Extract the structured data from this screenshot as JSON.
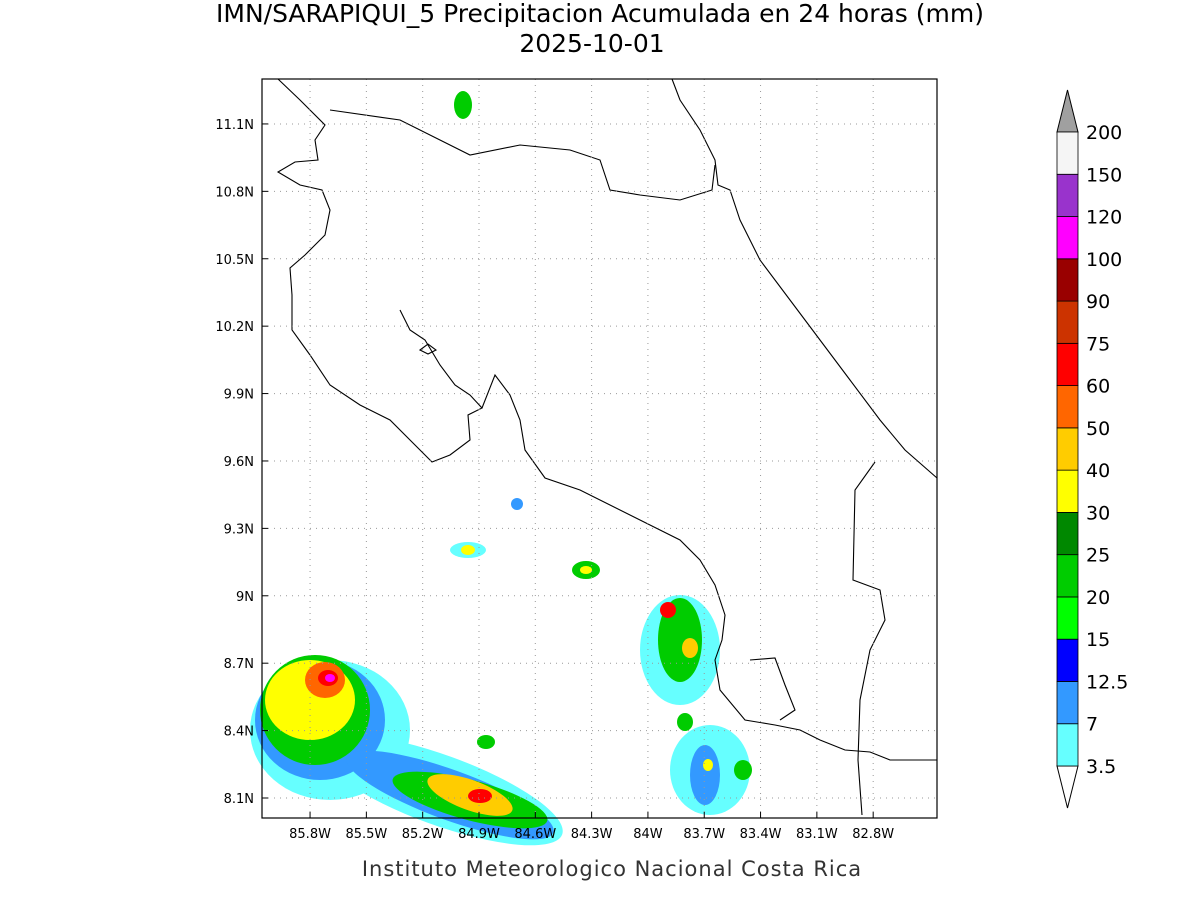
{
  "title": "IMN/SARAPIQUI_5 Precipitacion Acumulada en 24 horas (mm)",
  "subtitle": "2025-10-01",
  "map": {
    "xlim": [
      -86.056,
      -82.46
    ],
    "ylim": [
      8.011,
      11.3
    ],
    "xticks": [
      {
        "value": -85.8,
        "label": "85.8W"
      },
      {
        "value": -85.5,
        "label": "85.5W"
      },
      {
        "value": -85.2,
        "label": "85.2W"
      },
      {
        "value": -84.9,
        "label": "84.9W"
      },
      {
        "value": -84.6,
        "label": "84.6W"
      },
      {
        "value": -84.3,
        "label": "84.3W"
      },
      {
        "value": -84.0,
        "label": "84W"
      },
      {
        "value": -83.7,
        "label": "83.7W"
      },
      {
        "value": -83.4,
        "label": "83.4W"
      },
      {
        "value": -83.1,
        "label": "83.1W"
      },
      {
        "value": -82.8,
        "label": "82.8W"
      }
    ],
    "yticks": [
      {
        "value": 8.1,
        "label": "8.1N"
      },
      {
        "value": 8.4,
        "label": "8.4N"
      },
      {
        "value": 8.7,
        "label": "8.7N"
      },
      {
        "value": 9.0,
        "label": "9N"
      },
      {
        "value": 9.3,
        "label": "9.3N"
      },
      {
        "value": 9.6,
        "label": "9.6N"
      },
      {
        "value": 9.9,
        "label": "9.9N"
      },
      {
        "value": 10.2,
        "label": "10.2N"
      },
      {
        "value": 10.5,
        "label": "10.5N"
      },
      {
        "value": 10.8,
        "label": "10.8N"
      },
      {
        "value": 11.1,
        "label": "11.1N"
      }
    ],
    "grid": true
  },
  "colorbar": {
    "levels": [
      3.5,
      7,
      12.5,
      15,
      20,
      25,
      30,
      40,
      50,
      60,
      75,
      90,
      100,
      120,
      150,
      200
    ],
    "colors": [
      "#66ffff",
      "#3399ff",
      "#0000ff",
      "#00ff00",
      "#00cc00",
      "#008800",
      "#ffff00",
      "#ffcc00",
      "#ff6600",
      "#ff0000",
      "#cc3300",
      "#990000",
      "#ff00ff",
      "#9933cc",
      "#f5f5f5"
    ],
    "under_color": "#ffffff",
    "over_color": "#a0a0a0"
  },
  "footer": "Instituto Meteorologico Nacional Costa Rica"
}
